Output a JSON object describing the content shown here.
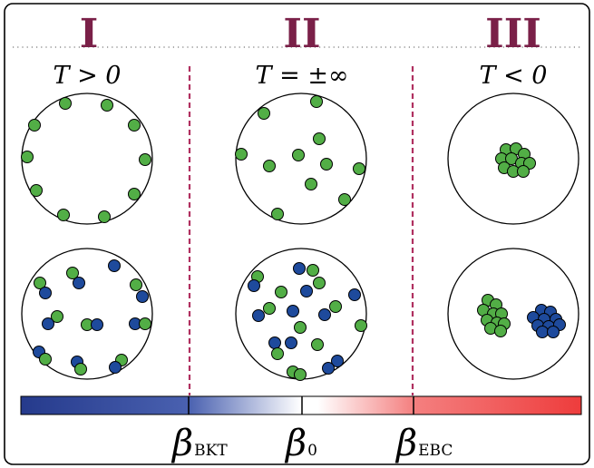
{
  "colors": {
    "frame": "#000000",
    "roman": "#7a2048",
    "divider": "#b03060",
    "particle_green": "#52ae46",
    "particle_blue": "#1e4a9c",
    "bar_blue": "#253a8c",
    "bar_white": "#ffffff",
    "bar_red": "#ee3c3c"
  },
  "regions": [
    {
      "numeral": "I",
      "temperature_label": "T > 0"
    },
    {
      "numeral": "II",
      "temperature_label": "T = ±∞"
    },
    {
      "numeral": "III",
      "temperature_label": "T < 0"
    }
  ],
  "colorbar": {
    "markers": [
      {
        "symbol": "β",
        "subscript": "BKT"
      },
      {
        "symbol": "β",
        "subscript": "0"
      },
      {
        "symbol": "β",
        "subscript": "EBC"
      }
    ]
  }
}
